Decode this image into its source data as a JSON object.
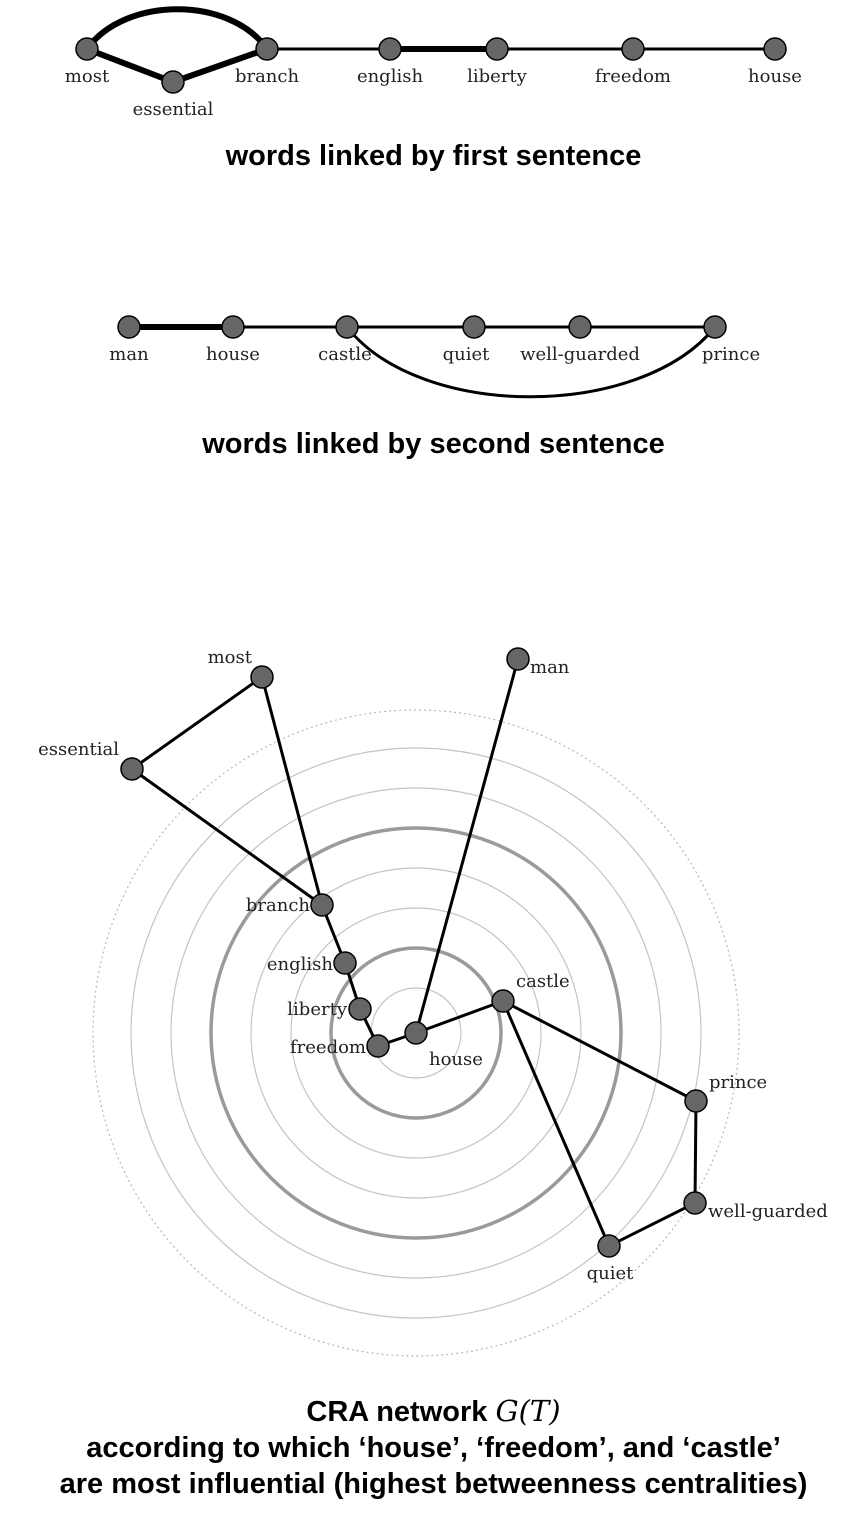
{
  "diagrams": [
    {
      "id": "first",
      "caption": "words linked by first sentence",
      "nodes": [
        {
          "id": "most",
          "label": "most"
        },
        {
          "id": "essential",
          "label": "essential"
        },
        {
          "id": "branch",
          "label": "branch"
        },
        {
          "id": "english",
          "label": "english"
        },
        {
          "id": "liberty",
          "label": "liberty"
        },
        {
          "id": "freedom",
          "label": "freedom"
        },
        {
          "id": "house",
          "label": "house"
        }
      ],
      "edges": [
        {
          "from": "most",
          "to": "branch",
          "weight": 2
        },
        {
          "from": "most",
          "to": "essential",
          "weight": 2
        },
        {
          "from": "essential",
          "to": "branch",
          "weight": 2
        },
        {
          "from": "branch",
          "to": "english",
          "weight": 1
        },
        {
          "from": "english",
          "to": "liberty",
          "weight": 2
        },
        {
          "from": "liberty",
          "to": "freedom",
          "weight": 1
        },
        {
          "from": "freedom",
          "to": "house",
          "weight": 1
        }
      ]
    },
    {
      "id": "second",
      "caption": "words linked by second sentence",
      "nodes": [
        {
          "id": "man",
          "label": "man"
        },
        {
          "id": "house",
          "label": "house"
        },
        {
          "id": "castle",
          "label": "castle"
        },
        {
          "id": "quiet",
          "label": "quiet"
        },
        {
          "id": "well-guarded",
          "label": "well-guarded"
        },
        {
          "id": "prince",
          "label": "prince"
        }
      ],
      "edges": [
        {
          "from": "man",
          "to": "house",
          "weight": 2
        },
        {
          "from": "house",
          "to": "castle",
          "weight": 1
        },
        {
          "from": "castle",
          "to": "quiet",
          "weight": 1
        },
        {
          "from": "quiet",
          "to": "well-guarded",
          "weight": 1
        },
        {
          "from": "well-guarded",
          "to": "prince",
          "weight": 1
        },
        {
          "from": "castle",
          "to": "prince",
          "weight": 1
        }
      ]
    },
    {
      "id": "network",
      "caption_title": "CRA network ",
      "caption_math": "G(T)",
      "caption_line2": "according to which ‘house’, ‘freedom’, and ‘castle’",
      "caption_line3": "are most influential (highest betweenness centralities)",
      "nodes": [
        {
          "id": "most",
          "label": "most"
        },
        {
          "id": "essential",
          "label": "essential"
        },
        {
          "id": "branch",
          "label": "branch"
        },
        {
          "id": "english",
          "label": "english"
        },
        {
          "id": "liberty",
          "label": "liberty"
        },
        {
          "id": "freedom",
          "label": "freedom"
        },
        {
          "id": "house",
          "label": "house"
        },
        {
          "id": "man",
          "label": "man"
        },
        {
          "id": "castle",
          "label": "castle"
        },
        {
          "id": "prince",
          "label": "prince"
        },
        {
          "id": "well-guarded",
          "label": "well-guarded"
        },
        {
          "id": "quiet",
          "label": "quiet"
        }
      ],
      "edges": [
        {
          "from": "most",
          "to": "essential"
        },
        {
          "from": "most",
          "to": "branch"
        },
        {
          "from": "essential",
          "to": "branch"
        },
        {
          "from": "branch",
          "to": "english"
        },
        {
          "from": "english",
          "to": "liberty"
        },
        {
          "from": "liberty",
          "to": "freedom"
        },
        {
          "from": "freedom",
          "to": "house"
        },
        {
          "from": "house",
          "to": "man"
        },
        {
          "from": "house",
          "to": "castle"
        },
        {
          "from": "castle",
          "to": "prince"
        },
        {
          "from": "castle",
          "to": "quiet"
        },
        {
          "from": "prince",
          "to": "well-guarded"
        },
        {
          "from": "well-guarded",
          "to": "quiet"
        }
      ]
    }
  ]
}
